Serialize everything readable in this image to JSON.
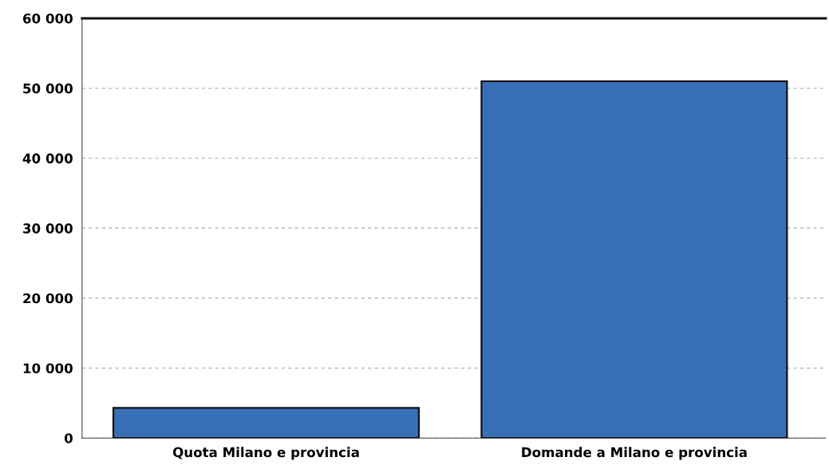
{
  "chart_data": {
    "type": "bar",
    "categories": [
      "Quota Milano e provincia",
      "Domande a Milano e provincia"
    ],
    "values": [
      4300,
      51000
    ],
    "color": "#3870b8",
    "ylim": [
      0,
      60000
    ],
    "yticks": [
      {
        "value": 0,
        "label": "0"
      },
      {
        "value": 10000,
        "label": "10 000"
      },
      {
        "value": 20000,
        "label": "20 000"
      },
      {
        "value": 30000,
        "label": "30 000"
      },
      {
        "value": 40000,
        "label": "40 000"
      },
      {
        "value": 50000,
        "label": "50 000"
      },
      {
        "value": 60000,
        "label": "60 000"
      }
    ],
    "grid": "y",
    "legend": false
  }
}
